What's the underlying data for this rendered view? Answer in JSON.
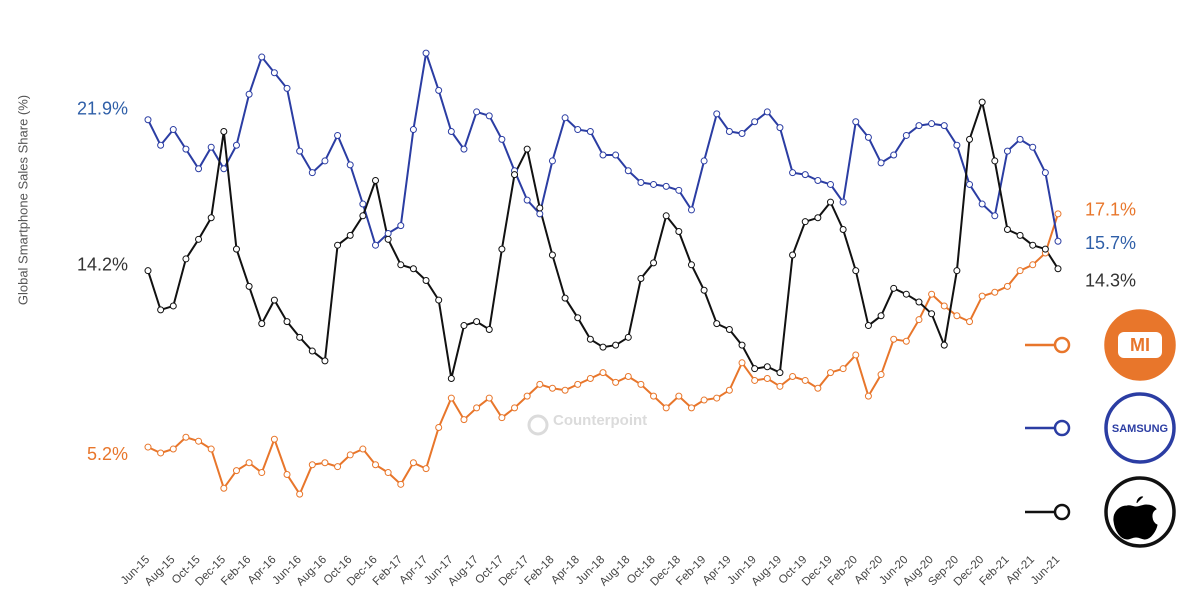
{
  "chart_data": {
    "type": "line",
    "y_label": "Global Smartphone Sales Share (%)",
    "watermark": "Counterpoint",
    "ylim": [
      0,
      26
    ],
    "categories": [
      "Jun-15",
      null,
      "Aug-15",
      null,
      "Oct-15",
      null,
      "Dec-15",
      null,
      "Feb-16",
      null,
      "Apr-16",
      null,
      "Jun-16",
      null,
      "Aug-16",
      null,
      "Oct-16",
      null,
      "Dec-16",
      null,
      "Feb-17",
      null,
      "Apr-17",
      null,
      "Jun-17",
      null,
      "Aug-17",
      null,
      "Oct-17",
      null,
      "Dec-17",
      null,
      "Feb-18",
      null,
      "Apr-18",
      null,
      "Jun-18",
      null,
      "Aug-18",
      null,
      "Oct-18",
      null,
      "Dec-18",
      null,
      "Feb-19",
      null,
      "Apr-19",
      null,
      "Jun-19",
      null,
      "Aug-19",
      null,
      "Oct-19",
      null,
      "Dec-19",
      null,
      "Feb-20",
      null,
      "Apr-20",
      null,
      "Jun-20",
      null,
      "Aug-20",
      null,
      "Sep-20",
      null,
      "Dec-20",
      null,
      "Feb-21",
      null,
      "Apr-21",
      null,
      "Jun-21"
    ],
    "series": [
      {
        "name": "MI",
        "color": "#e8762b",
        "values": [
          5.2,
          4.9,
          5.1,
          5.7,
          5.5,
          5.1,
          3.1,
          4.0,
          4.4,
          3.9,
          5.6,
          3.8,
          2.8,
          4.3,
          4.4,
          4.2,
          4.8,
          5.1,
          4.3,
          3.9,
          3.3,
          4.4,
          4.1,
          6.2,
          7.7,
          6.6,
          7.2,
          7.7,
          6.7,
          7.2,
          7.8,
          8.4,
          8.2,
          8.1,
          8.4,
          8.7,
          9.0,
          8.5,
          8.8,
          8.4,
          7.8,
          7.2,
          7.8,
          7.2,
          7.6,
          7.7,
          8.1,
          9.5,
          8.6,
          8.7,
          8.3,
          8.8,
          8.6,
          8.2,
          9.0,
          9.2,
          9.9,
          7.8,
          8.9,
          10.7,
          10.6,
          11.7,
          13.0,
          12.4,
          11.9,
          11.6,
          12.9,
          13.1,
          13.4,
          14.2,
          14.5,
          15.1,
          17.1
        ],
        "value_labels": [
          "5.2%",
          null,
          null,
          null,
          null,
          null,
          null,
          null,
          null,
          null,
          null,
          null,
          null,
          null,
          null,
          null,
          null,
          null,
          null,
          null,
          null,
          null,
          null,
          null,
          null,
          null,
          null,
          null,
          null,
          null,
          null,
          null,
          null,
          null,
          null,
          null,
          null,
          null,
          null,
          null,
          null,
          null,
          null,
          null,
          null,
          null,
          null,
          null,
          null,
          null,
          null,
          null,
          null,
          null,
          null,
          null,
          null,
          null,
          null,
          null,
          null,
          null,
          null,
          null,
          null,
          null,
          null,
          null,
          null,
          null,
          null,
          null,
          "17.1%"
        ]
      },
      {
        "name": "SAMSUNG",
        "color": "#2b3da3",
        "label_color": "#2f5fa8",
        "values": [
          21.9,
          20.6,
          21.4,
          20.4,
          19.4,
          20.5,
          19.4,
          20.6,
          23.2,
          25.1,
          24.3,
          23.5,
          20.3,
          19.2,
          19.8,
          21.1,
          19.6,
          17.6,
          15.5,
          16.1,
          16.5,
          21.4,
          25.3,
          23.4,
          21.3,
          20.4,
          22.3,
          22.1,
          20.9,
          19.3,
          17.8,
          17.1,
          19.8,
          22.0,
          21.4,
          21.3,
          20.1,
          20.1,
          19.3,
          18.7,
          18.6,
          18.5,
          18.3,
          17.3,
          19.8,
          22.2,
          21.3,
          21.2,
          21.8,
          22.3,
          21.5,
          19.2,
          19.1,
          18.8,
          18.6,
          17.7,
          21.8,
          21.0,
          19.7,
          20.1,
          21.1,
          21.6,
          21.7,
          21.6,
          20.6,
          18.6,
          17.6,
          17.0,
          20.3,
          20.9,
          20.5,
          19.2,
          15.7
        ],
        "value_labels": [
          "21.9%",
          null,
          null,
          null,
          null,
          null,
          null,
          null,
          null,
          null,
          null,
          null,
          null,
          null,
          null,
          null,
          null,
          null,
          null,
          null,
          null,
          null,
          null,
          null,
          null,
          null,
          null,
          null,
          null,
          null,
          null,
          null,
          null,
          null,
          null,
          null,
          null,
          null,
          null,
          null,
          null,
          null,
          null,
          null,
          null,
          null,
          null,
          null,
          null,
          null,
          null,
          null,
          null,
          null,
          null,
          null,
          null,
          null,
          null,
          null,
          null,
          null,
          null,
          null,
          null,
          null,
          null,
          null,
          null,
          null,
          null,
          null,
          "15.7%"
        ]
      },
      {
        "color": "#111111",
        "label_color": "#333333",
        "values": [
          14.2,
          12.2,
          12.4,
          14.8,
          15.8,
          16.9,
          21.3,
          15.3,
          13.4,
          11.5,
          12.7,
          11.6,
          10.8,
          10.1,
          9.6,
          15.5,
          16.0,
          17.0,
          18.8,
          15.8,
          14.5,
          14.3,
          13.7,
          12.7,
          8.7,
          11.4,
          11.6,
          11.2,
          15.3,
          19.1,
          20.4,
          17.4,
          15.0,
          12.8,
          11.8,
          10.7,
          10.3,
          10.4,
          10.8,
          13.8,
          14.6,
          17.0,
          16.2,
          14.5,
          13.2,
          11.5,
          11.2,
          10.4,
          9.2,
          9.3,
          9.0,
          15.0,
          16.7,
          16.9,
          17.7,
          16.3,
          14.2,
          11.4,
          11.9,
          13.3,
          13.0,
          12.6,
          12.0,
          10.4,
          14.2,
          20.9,
          22.8,
          19.8,
          16.3,
          16.0,
          15.5,
          15.3,
          14.3
        ],
        "value_labels": [
          "14.2%",
          null,
          null,
          null,
          null,
          null,
          null,
          null,
          null,
          null,
          null,
          null,
          null,
          null,
          null,
          null,
          null,
          null,
          null,
          null,
          null,
          null,
          null,
          null,
          null,
          null,
          null,
          null,
          null,
          null,
          null,
          null,
          null,
          null,
          null,
          null,
          null,
          null,
          null,
          null,
          null,
          null,
          null,
          null,
          null,
          null,
          null,
          null,
          null,
          null,
          null,
          null,
          null,
          null,
          null,
          null,
          null,
          null,
          null,
          null,
          null,
          null,
          null,
          null,
          null,
          null,
          null,
          null,
          null,
          null,
          null,
          null,
          "14.3%"
        ]
      }
    ]
  }
}
